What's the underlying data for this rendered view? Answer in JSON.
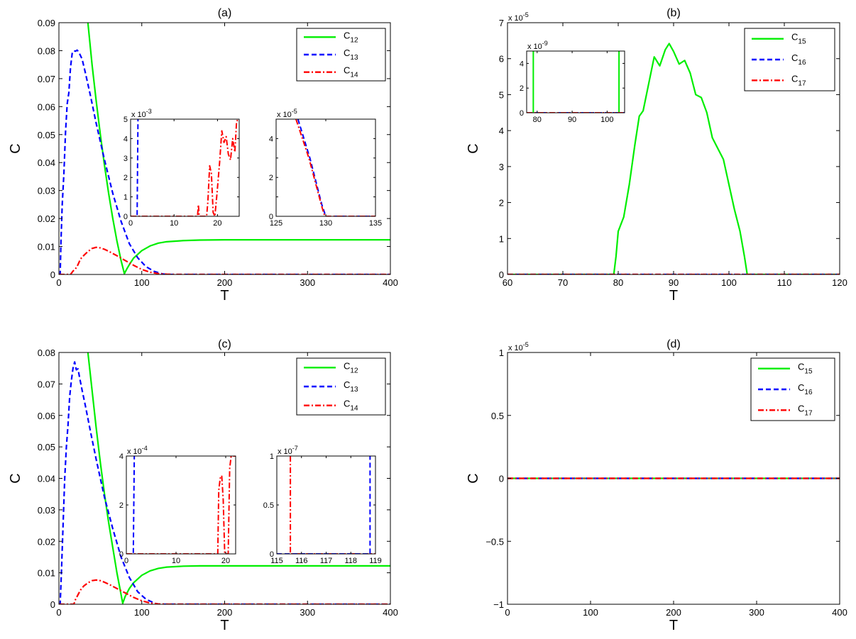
{
  "colors": {
    "C12": "#00ee00",
    "C13": "#0000ff",
    "C14": "#ff0000",
    "C15": "#00ee00",
    "C16": "#0000ff",
    "C17": "#ff0000",
    "axis": "#000000",
    "background": "#ffffff"
  },
  "chart_data": [
    {
      "id": "a",
      "type": "line",
      "title": "(a)",
      "xlabel": "T",
      "ylabel": "C",
      "xlim": [
        0,
        400
      ],
      "ylim": [
        0,
        0.09
      ],
      "xticks": [
        0,
        100,
        200,
        300,
        400
      ],
      "yticks": [
        0,
        0.01,
        0.02,
        0.03,
        0.04,
        0.05,
        0.06,
        0.07,
        0.08,
        0.09
      ],
      "ytick_labels": [
        "0",
        "0.01",
        "0.02",
        "0.03",
        "0.04",
        "0.05",
        "0.06",
        "0.07",
        "0.08",
        "0.09"
      ],
      "legend": {
        "placement": "top-right",
        "entries": [
          "C_{12}",
          "C_{13}",
          "C_{14}"
        ]
      },
      "series": [
        {
          "name": "C_{12}",
          "style": "solid",
          "color": "#00ee00",
          "x": [
            35,
            40,
            45,
            50,
            55,
            60,
            65,
            70,
            75,
            79,
            82,
            86,
            90,
            100,
            110,
            120,
            130,
            150,
            170,
            200,
            250,
            300,
            400
          ],
          "y": [
            0.09,
            0.075,
            0.062,
            0.05,
            0.039,
            0.029,
            0.02,
            0.012,
            0.005,
            0.0003,
            0.002,
            0.004,
            0.0058,
            0.0085,
            0.0102,
            0.0112,
            0.0117,
            0.0121,
            0.0123,
            0.0124,
            0.0124,
            0.0124,
            0.0124
          ]
        },
        {
          "name": "C_{13}",
          "style": "dashed",
          "color": "#0000ff",
          "x": [
            0,
            1.5,
            2.5,
            4,
            6,
            8,
            10,
            12,
            14,
            16,
            18,
            20,
            22,
            24,
            28,
            32,
            38,
            45,
            55,
            65,
            75,
            85,
            95,
            105,
            115,
            125,
            130,
            140,
            200,
            300,
            400
          ],
          "y": [
            0,
            0,
            0.012,
            0.025,
            0.036,
            0.051,
            0.061,
            0.065,
            0.074,
            0.079,
            0.08,
            0.0798,
            0.0802,
            0.0795,
            0.077,
            0.072,
            0.064,
            0.054,
            0.041,
            0.029,
            0.019,
            0.011,
            0.006,
            0.0028,
            0.0011,
            0.0002,
            0,
            0,
            0,
            0,
            0
          ]
        },
        {
          "name": "C_{14}",
          "style": "dashdot",
          "color": "#ff0000",
          "x": [
            0,
            14,
            17,
            20,
            23,
            26,
            30,
            35,
            40,
            45,
            50,
            55,
            60,
            70,
            80,
            90,
            100,
            110,
            120,
            130,
            140,
            200,
            300,
            400
          ],
          "y": [
            0,
            0,
            0.0012,
            0.002,
            0.0035,
            0.0055,
            0.0068,
            0.0082,
            0.0093,
            0.0097,
            0.0095,
            0.009,
            0.0083,
            0.0067,
            0.005,
            0.0033,
            0.0018,
            0.0008,
            0.0003,
            0.0001,
            0,
            0,
            0,
            0
          ]
        }
      ],
      "insets": [
        {
          "xlim": [
            0,
            25
          ],
          "ylim": [
            0,
            5
          ],
          "xticks": [
            0,
            10,
            20
          ],
          "yticks": [
            0,
            1,
            2,
            3,
            4,
            5
          ],
          "ytick_labels": [
            "0",
            "1",
            "2",
            "3",
            "4",
            "5"
          ],
          "multiplier": "x 10",
          "exponent": "-3",
          "series": [
            {
              "name": "C_{13}",
              "style": "dashed",
              "color": "#0000ff",
              "x": [
                0,
                1.5,
                1.6,
                1.7
              ],
              "y": [
                0,
                0,
                2.5,
                5
              ]
            },
            {
              "name": "C_{14}",
              "style": "dashdot",
              "color": "#ff0000",
              "x": [
                0,
                15.4,
                15.6,
                15.8,
                16.1,
                17.5,
                17.8,
                18.2,
                18.6,
                19.0,
                19.4,
                19.9,
                20.5,
                21.0,
                21.5,
                22.0,
                22.5,
                23.0,
                23.5,
                24.0,
                24.4,
                25.0
              ],
              "y": [
                0,
                0,
                0.6,
                0,
                0,
                0,
                0.8,
                2.6,
                2.2,
                0.2,
                0,
                1.2,
                2.8,
                4.4,
                3.8,
                4.1,
                3.2,
                2.9,
                4.0,
                3.3,
                4.9,
                5.0
              ]
            }
          ]
        },
        {
          "xlim": [
            125,
            135
          ],
          "ylim": [
            0,
            5
          ],
          "xticks": [
            125,
            130,
            135
          ],
          "yticks": [
            0,
            1,
            2,
            3,
            4
          ],
          "ytick_labels": [
            "0",
            "",
            "2",
            "",
            "4"
          ],
          "multiplier": "x 10",
          "exponent": "-5",
          "series": [
            {
              "name": "C_{13}",
              "style": "dashed",
              "color": "#0000ff",
              "x": [
                127.2,
                128.4,
                129.6,
                130,
                135
              ],
              "y": [
                5,
                3,
                0.6,
                0,
                0
              ]
            },
            {
              "name": "C_{14}",
              "style": "dashdot",
              "color": "#ff0000",
              "x": [
                127.0,
                128.3,
                129.6,
                129.9,
                135
              ],
              "y": [
                5,
                3,
                0.5,
                0,
                0
              ]
            }
          ]
        }
      ]
    },
    {
      "id": "b",
      "type": "line",
      "title": "(b)",
      "xlabel": "T",
      "ylabel": "C",
      "xlim": [
        60,
        120
      ],
      "ylim": [
        0,
        7
      ],
      "xticks": [
        60,
        70,
        80,
        90,
        100,
        110,
        120
      ],
      "yticks": [
        0,
        1,
        2,
        3,
        4,
        5,
        6,
        7
      ],
      "ytick_labels": [
        "0",
        "1",
        "2",
        "3",
        "4",
        "5",
        "6",
        "7"
      ],
      "multiplier": "x 10",
      "exponent": "-5",
      "legend": {
        "placement": "top-right",
        "entries": [
          "C_{15}",
          "C_{16}",
          "C_{17}"
        ]
      },
      "series": [
        {
          "name": "C_{15}",
          "style": "solid",
          "color": "#00ee00",
          "x": [
            60,
            79.2,
            79.6,
            80,
            81,
            82,
            83,
            83.8,
            84.5,
            85.5,
            86.5,
            87.5,
            88.5,
            89.2,
            90,
            91,
            92,
            93,
            94,
            95,
            96,
            97,
            98,
            99,
            100,
            101,
            102,
            102.8,
            103.3,
            120
          ],
          "y": [
            0,
            0,
            0.5,
            1.2,
            1.6,
            2.5,
            3.6,
            4.4,
            4.55,
            5.3,
            6.05,
            5.8,
            6.25,
            6.42,
            6.2,
            5.85,
            5.95,
            5.6,
            5.0,
            4.92,
            4.5,
            3.8,
            3.5,
            3.2,
            2.5,
            1.8,
            1.2,
            0.5,
            0,
            0
          ]
        },
        {
          "name": "C_{16}",
          "style": "dashed",
          "color": "#0000ff",
          "x": [
            60,
            120
          ],
          "y": [
            0,
            0
          ]
        },
        {
          "name": "C_{17}",
          "style": "dashdot",
          "color": "#ff0000",
          "x": [
            60,
            120
          ],
          "y": [
            0,
            0
          ]
        }
      ],
      "insets": [
        {
          "xlim": [
            77,
            105
          ],
          "ylim": [
            0,
            5
          ],
          "xticks": [
            80,
            90,
            100
          ],
          "yticks": [
            0,
            2,
            4
          ],
          "ytick_labels": [
            "0",
            "2",
            "4"
          ],
          "multiplier": "x 10",
          "exponent": "-9",
          "series": [
            {
              "name": "C_{15}",
              "style": "solid",
              "color": "#00ee00",
              "x": [
                78.9,
                78.9
              ],
              "y": [
                0,
                5
              ]
            },
            {
              "name": "C_{15}",
              "style": "solid",
              "color": "#00ee00",
              "x": [
                103.4,
                103.4
              ],
              "y": [
                0,
                5
              ]
            },
            {
              "name": "C_{16}",
              "style": "dashed",
              "color": "#0000ff",
              "x": [
                77,
                105
              ],
              "y": [
                0,
                0
              ]
            },
            {
              "name": "C_{17}",
              "style": "dashdot",
              "color": "#ff0000",
              "x": [
                77,
                105
              ],
              "y": [
                0,
                0
              ]
            }
          ]
        }
      ]
    },
    {
      "id": "c",
      "type": "line",
      "title": "(c)",
      "xlabel": "T",
      "ylabel": "C",
      "xlim": [
        0,
        400
      ],
      "ylim": [
        0,
        0.08
      ],
      "xticks": [
        0,
        100,
        200,
        300,
        400
      ],
      "yticks": [
        0,
        0.01,
        0.02,
        0.03,
        0.04,
        0.05,
        0.06,
        0.07,
        0.08
      ],
      "ytick_labels": [
        "0",
        "0.01",
        "0.02",
        "0.03",
        "0.04",
        "0.05",
        "0.06",
        "0.07",
        "0.08"
      ],
      "legend": {
        "placement": "top-right",
        "entries": [
          "C_{12}",
          "C_{13}",
          "C_{14}"
        ]
      },
      "series": [
        {
          "name": "C_{12}",
          "style": "solid",
          "color": "#00ee00",
          "x": [
            35,
            40,
            45,
            50,
            55,
            60,
            65,
            70,
            74,
            77,
            80,
            85,
            90,
            100,
            110,
            120,
            130,
            150,
            170,
            200,
            250,
            300,
            400
          ],
          "y": [
            0.08,
            0.068,
            0.056,
            0.045,
            0.035,
            0.026,
            0.018,
            0.01,
            0.0045,
            0.0003,
            0.0025,
            0.005,
            0.0068,
            0.0092,
            0.0106,
            0.0114,
            0.0118,
            0.0121,
            0.0122,
            0.0122,
            0.0122,
            0.0122,
            0.0122
          ]
        },
        {
          "name": "C_{13}",
          "style": "dashed",
          "color": "#0000ff",
          "x": [
            0,
            1.5,
            3,
            5,
            7,
            9,
            11,
            13,
            15,
            17,
            19,
            21,
            23,
            25,
            28,
            32,
            38,
            45,
            55,
            65,
            75,
            85,
            95,
            105,
            115,
            120,
            140,
            200,
            300,
            400
          ],
          "y": [
            0,
            0,
            0.01,
            0.025,
            0.04,
            0.05,
            0.057,
            0.066,
            0.071,
            0.075,
            0.077,
            0.0745,
            0.0748,
            0.072,
            0.068,
            0.063,
            0.055,
            0.046,
            0.034,
            0.024,
            0.015,
            0.0085,
            0.004,
            0.0016,
            0.0004,
            0,
            0,
            0,
            0,
            0
          ]
        },
        {
          "name": "C_{14}",
          "style": "dashdot",
          "color": "#ff0000",
          "x": [
            0,
            18,
            20,
            23,
            26,
            30,
            35,
            40,
            45,
            50,
            55,
            60,
            70,
            80,
            90,
            100,
            110,
            120,
            130,
            200,
            300,
            400
          ],
          "y": [
            0,
            0,
            0.0015,
            0.003,
            0.0045,
            0.0058,
            0.0068,
            0.0075,
            0.0077,
            0.0075,
            0.007,
            0.0064,
            0.005,
            0.0036,
            0.0022,
            0.0011,
            0.0004,
            0.0001,
            0,
            0,
            0,
            0
          ]
        }
      ],
      "insets": [
        {
          "xlim": [
            0,
            22
          ],
          "ylim": [
            0,
            4
          ],
          "xticks": [
            0,
            10,
            20
          ],
          "yticks": [
            0,
            2,
            4
          ],
          "ytick_labels": [
            "0",
            "2",
            "4"
          ],
          "multiplier": "x 10",
          "exponent": "-4",
          "series": [
            {
              "name": "C_{13}",
              "style": "dashed",
              "color": "#0000ff",
              "x": [
                0,
                1.4,
                1.5,
                1.6
              ],
              "y": [
                0,
                0,
                2,
                4
              ]
            },
            {
              "name": "C_{14}",
              "style": "dashdot",
              "color": "#ff0000",
              "x": [
                0,
                18.4,
                18.6,
                18.9,
                19.2,
                19.5,
                19.8,
                20.5,
                20.8,
                21.1,
                22
              ],
              "y": [
                0,
                0,
                2.6,
                3.1,
                3.2,
                2.2,
                0,
                0,
                3.5,
                4.0,
                4.0
              ]
            }
          ]
        },
        {
          "xlim": [
            115,
            119
          ],
          "ylim": [
            0,
            1
          ],
          "xticks": [
            115,
            116,
            117,
            118,
            119
          ],
          "yticks": [
            0,
            0.5,
            1
          ],
          "ytick_labels": [
            "0",
            "0.5",
            "1"
          ],
          "multiplier": "x 10",
          "exponent": "-7",
          "series": [
            {
              "name": "C_{14}",
              "style": "dashdot",
              "color": "#ff0000",
              "x": [
                115.55,
                115.55,
                115.55,
                119
              ],
              "y": [
                1,
                0.5,
                0,
                0
              ]
            },
            {
              "name": "C_{13}",
              "style": "dashed",
              "color": "#0000ff",
              "x": [
                115,
                118.78,
                118.78,
                118.78
              ],
              "y": [
                0,
                0,
                0.5,
                1
              ]
            }
          ]
        }
      ]
    },
    {
      "id": "d",
      "type": "line",
      "title": "(d)",
      "xlabel": "T",
      "ylabel": "C",
      "xlim": [
        0,
        400
      ],
      "ylim": [
        -1,
        1
      ],
      "xticks": [
        0,
        100,
        200,
        300,
        400
      ],
      "yticks": [
        -1,
        -0.5,
        0,
        0.5,
        1
      ],
      "ytick_labels": [
        "−1",
        "−0.5",
        "0",
        "0.5",
        "1"
      ],
      "multiplier": "x 10",
      "exponent": "-5",
      "legend": {
        "placement": "top-right",
        "entries": [
          "C_{15}",
          "C_{16}",
          "C_{17}"
        ]
      },
      "series": [
        {
          "name": "C_{15}",
          "style": "solid",
          "color": "#00ee00",
          "x": [
            0,
            400
          ],
          "y": [
            0,
            0
          ]
        },
        {
          "name": "C_{16}",
          "style": "dashed",
          "color": "#0000ff",
          "x": [
            0,
            400
          ],
          "y": [
            0,
            0
          ]
        },
        {
          "name": "C_{17}",
          "style": "dashdot",
          "color": "#ff0000",
          "x": [
            0,
            400
          ],
          "y": [
            0,
            0
          ]
        }
      ]
    }
  ]
}
